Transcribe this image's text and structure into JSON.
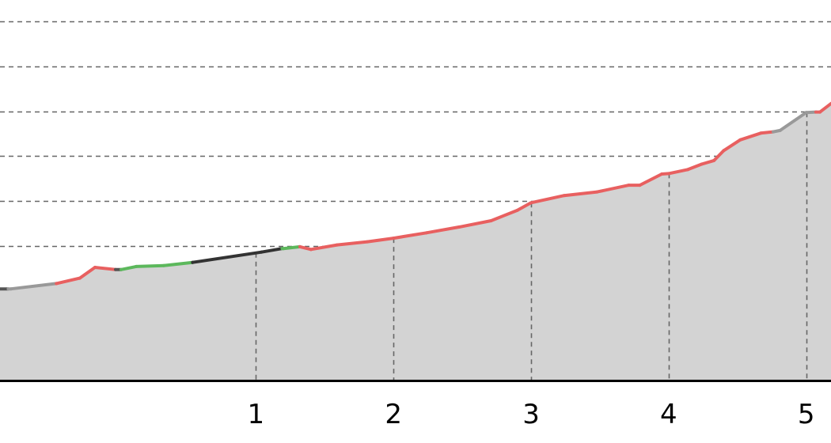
{
  "chart_data": {
    "type": "area",
    "title": "",
    "xlabel": "",
    "ylabel": "",
    "xlim": [
      -0.86,
      5.18
    ],
    "ylim": [
      0,
      8.0
    ],
    "grid": {
      "horizontal": true,
      "vertical": true,
      "style": "dashed"
    },
    "x_ticks": [
      {
        "value": 1,
        "label": "1"
      },
      {
        "value": 2,
        "label": "2"
      },
      {
        "value": 3,
        "label": "3"
      },
      {
        "value": 4,
        "label": "4"
      },
      {
        "value": 5,
        "label": "5"
      }
    ],
    "y_gridlines": [
      1,
      2,
      3,
      4,
      5,
      6,
      7,
      8
    ],
    "fill_color": "#d3d3d3",
    "axis_color": "#000000",
    "grid_color": "#666666",
    "series": [
      {
        "values": [
          {
            "x": -0.86,
            "y": 2.04,
            "color": "#5cb85c"
          },
          {
            "x": -0.8,
            "y": 2.04,
            "color": "#555555"
          },
          {
            "x": -0.78,
            "y": 2.04,
            "color": "#999999"
          },
          {
            "x": -0.45,
            "y": 2.16,
            "color": "#999999"
          },
          {
            "x": -0.45,
            "y": 2.16,
            "color": "#e86060"
          },
          {
            "x": -0.28,
            "y": 2.28,
            "color": "#e86060"
          },
          {
            "x": -0.17,
            "y": 2.52,
            "color": "#e86060"
          },
          {
            "x": -0.02,
            "y": 2.47,
            "color": "#e86060"
          },
          {
            "x": 0.02,
            "y": 2.47,
            "color": "#555555"
          },
          {
            "x": 0.13,
            "y": 2.54,
            "color": "#5cb85c"
          },
          {
            "x": 0.33,
            "y": 2.56,
            "color": "#5cb85c"
          },
          {
            "x": 0.54,
            "y": 2.63,
            "color": "#5cb85c"
          },
          {
            "x": 0.54,
            "y": 2.63,
            "color": "#333333"
          },
          {
            "x": 1.04,
            "y": 2.86,
            "color": "#333333"
          },
          {
            "x": 1.19,
            "y": 2.94,
            "color": "#333333"
          },
          {
            "x": 1.2,
            "y": 2.94,
            "color": "#5cb85c"
          },
          {
            "x": 1.32,
            "y": 2.98,
            "color": "#5cb85c"
          },
          {
            "x": 1.32,
            "y": 2.98,
            "color": "#e86060"
          },
          {
            "x": 1.4,
            "y": 2.92,
            "color": "#e86060"
          },
          {
            "x": 1.59,
            "y": 3.02,
            "color": "#e86060"
          },
          {
            "x": 1.81,
            "y": 3.09,
            "color": "#e86060"
          },
          {
            "x": 2.0,
            "y": 3.17,
            "color": "#e86060"
          },
          {
            "x": 2.24,
            "y": 3.29,
            "color": "#e86060"
          },
          {
            "x": 2.48,
            "y": 3.42,
            "color": "#e86060"
          },
          {
            "x": 2.71,
            "y": 3.56,
            "color": "#e86060"
          },
          {
            "x": 2.9,
            "y": 3.79,
            "color": "#e86060"
          },
          {
            "x": 3.0,
            "y": 3.96,
            "color": "#e86060"
          },
          {
            "x": 3.24,
            "y": 4.12,
            "color": "#e86060"
          },
          {
            "x": 3.48,
            "y": 4.2,
            "color": "#e86060"
          },
          {
            "x": 3.71,
            "y": 4.35,
            "color": "#e86060"
          },
          {
            "x": 3.79,
            "y": 4.35,
            "color": "#e86060"
          },
          {
            "x": 3.95,
            "y": 4.6,
            "color": "#e86060"
          },
          {
            "x": 4.0,
            "y": 4.61,
            "color": "#e86060"
          },
          {
            "x": 4.14,
            "y": 4.7,
            "color": "#e86060"
          },
          {
            "x": 4.24,
            "y": 4.82,
            "color": "#e86060"
          },
          {
            "x": 4.33,
            "y": 4.9,
            "color": "#e86060"
          },
          {
            "x": 4.4,
            "y": 5.12,
            "color": "#e86060"
          },
          {
            "x": 4.52,
            "y": 5.36,
            "color": "#e86060"
          },
          {
            "x": 4.67,
            "y": 5.51,
            "color": "#e86060"
          },
          {
            "x": 4.76,
            "y": 5.54,
            "color": "#e86060"
          },
          {
            "x": 4.81,
            "y": 5.57,
            "color": "#999999"
          },
          {
            "x": 5.0,
            "y": 5.97,
            "color": "#999999"
          },
          {
            "x": 5.07,
            "y": 5.98,
            "color": "#999999"
          },
          {
            "x": 5.1,
            "y": 5.98,
            "color": "#e86060"
          },
          {
            "x": 5.18,
            "y": 6.17,
            "color": "#e86060"
          }
        ]
      }
    ]
  }
}
